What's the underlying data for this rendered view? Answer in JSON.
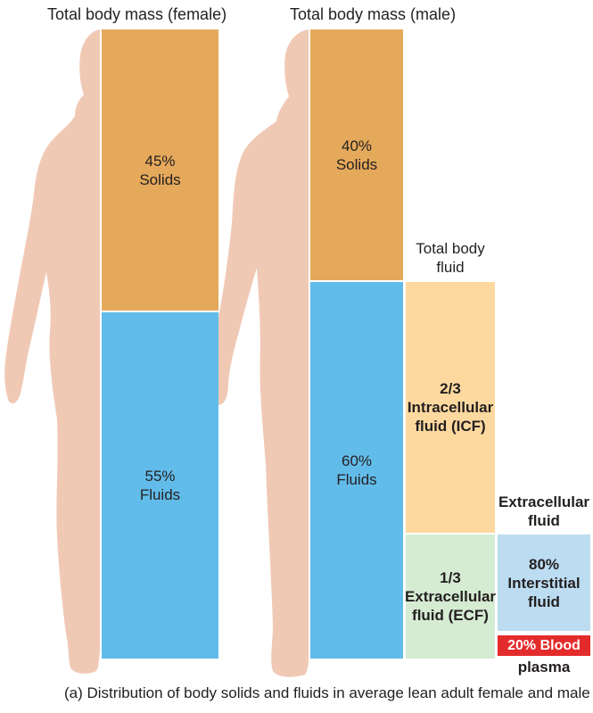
{
  "female": {
    "title": "Total body mass (female)",
    "solids": {
      "percent": "45%",
      "label": "Solids"
    },
    "fluids": {
      "percent": "55%",
      "label": "Fluids"
    }
  },
  "male": {
    "title": "Total body mass (male)",
    "solids": {
      "percent": "40%",
      "label": "Solids"
    },
    "fluids": {
      "percent": "60%",
      "label": "Fluids"
    }
  },
  "total_body_fluid": {
    "line1": "Total body",
    "line2": "fluid"
  },
  "icf": {
    "fraction": "2/3",
    "line1": "Intracellular",
    "line2": "fluid (ICF)"
  },
  "ecf": {
    "fraction": "1/3",
    "line1": "Extracellular",
    "line2": "fluid (ECF)"
  },
  "extracellular_fluid": {
    "line1": "Extracellular",
    "line2": "fluid"
  },
  "interstitial": {
    "percent": "80%",
    "line1": "Interstitial",
    "line2": "fluid"
  },
  "plasma": {
    "line1": "20% Blood",
    "line2": "plasma"
  },
  "caption": "(a) Distribution of body solids and fluids in average lean adult female and male",
  "colors": {
    "solids": "#e5a95b",
    "fluids": "#62bce9",
    "icf": "#fdd9a0",
    "ecf": "#d5ebd2",
    "interstitial": "#bcdcf2",
    "plasma": "#e42b2b",
    "skin": "#f0c9b5"
  }
}
